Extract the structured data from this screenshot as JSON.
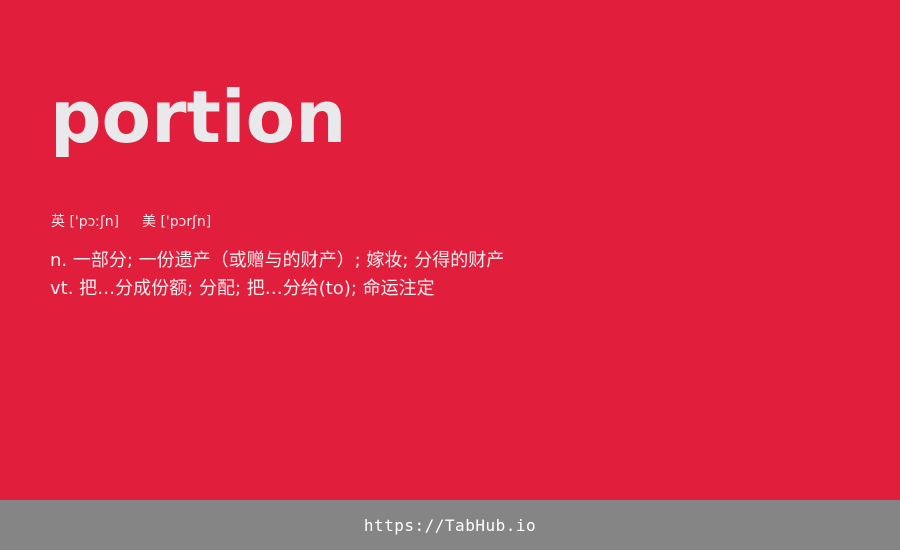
{
  "card": {
    "word": "portion",
    "phonetics": {
      "uk_label": "英",
      "uk_ipa": "['pɔːʃn]",
      "us_label": "美",
      "us_ipa": "['pɔrʃn]"
    },
    "definitions": [
      "n. 一部分; 一份遗产（或赠与的财产）; 嫁妆; 分得的财产",
      "vt. 把…分成份额; 分配; 把…分给(to); 命运注定"
    ]
  },
  "footer": {
    "link_text": "https://TabHub.io"
  },
  "colors": {
    "background": "#e11e3c",
    "footer_background": "#858585",
    "word_text": "#e9e9ec"
  }
}
